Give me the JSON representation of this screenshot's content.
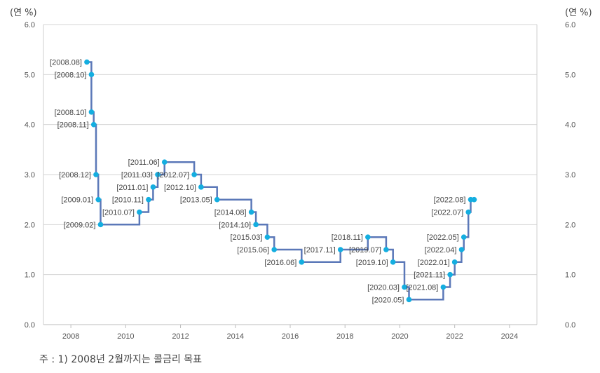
{
  "unit_left": "(연 %)",
  "unit_right": "(연 %)",
  "footnote": "주 : 1) 2008년 2월까지는 콜금리 목표",
  "chart_data": {
    "type": "line",
    "step": true,
    "title": "",
    "xlabel": "",
    "ylabel": "(연 %)",
    "xlim": [
      2007,
      2025
    ],
    "ylim": [
      0.0,
      6.0
    ],
    "xticks": [
      "2008",
      "2010",
      "2012",
      "2014",
      "2016",
      "2018",
      "2020",
      "2022",
      "2024"
    ],
    "yticks": [
      "0.0",
      "1.0",
      "2.0",
      "3.0",
      "4.0",
      "5.0",
      "6.0"
    ],
    "grid": "horizontal",
    "line_color": "#5b78b8",
    "marker_color": "#14aee0",
    "points": [
      {
        "date": "2008.08",
        "rate": 5.25,
        "label": "[2008.08]"
      },
      {
        "date": "2008.10",
        "rate": 5.0,
        "label": "[2008.10]"
      },
      {
        "date": "2008.10",
        "rate": 4.25,
        "label": "[2008.10]"
      },
      {
        "date": "2008.11",
        "rate": 4.0,
        "label": "[2008.11]"
      },
      {
        "date": "2008.12",
        "rate": 3.0,
        "label": "[2008.12]"
      },
      {
        "date": "2009.01",
        "rate": 2.5,
        "label": "[2009.01]"
      },
      {
        "date": "2009.02",
        "rate": 2.0,
        "label": "[2009.02]"
      },
      {
        "date": "2010.07",
        "rate": 2.25,
        "label": "[2010.07]"
      },
      {
        "date": "2010.11",
        "rate": 2.5,
        "label": "[2010.11]"
      },
      {
        "date": "2011.01",
        "rate": 2.75,
        "label": "[2011.01]"
      },
      {
        "date": "2011.03",
        "rate": 3.0,
        "label": "[2011.03]"
      },
      {
        "date": "2011.06",
        "rate": 3.25,
        "label": "[2011.06]"
      },
      {
        "date": "2012.07",
        "rate": 3.0,
        "label": "[2012.07]"
      },
      {
        "date": "2012.10",
        "rate": 2.75,
        "label": "[2012.10]"
      },
      {
        "date": "2013.05",
        "rate": 2.5,
        "label": "[2013.05]"
      },
      {
        "date": "2014.08",
        "rate": 2.25,
        "label": "[2014.08]"
      },
      {
        "date": "2014.10",
        "rate": 2.0,
        "label": "[2014.10]"
      },
      {
        "date": "2015.03",
        "rate": 1.75,
        "label": "[2015.03]"
      },
      {
        "date": "2015.06",
        "rate": 1.5,
        "label": "[2015.06]"
      },
      {
        "date": "2016.06",
        "rate": 1.25,
        "label": "[2016.06]"
      },
      {
        "date": "2017.11",
        "rate": 1.5,
        "label": "[2017.11]"
      },
      {
        "date": "2018.11",
        "rate": 1.75,
        "label": "[2018.11]"
      },
      {
        "date": "2019.07",
        "rate": 1.5,
        "label": "[2019.07]"
      },
      {
        "date": "2019.10",
        "rate": 1.25,
        "label": "[2019.10]"
      },
      {
        "date": "2020.03",
        "rate": 0.75,
        "label": "[2020.03]"
      },
      {
        "date": "2020.05",
        "rate": 0.5,
        "label": "[2020.05]"
      },
      {
        "date": "2021.08",
        "rate": 0.75,
        "label": "[2021.08]"
      },
      {
        "date": "2021.11",
        "rate": 1.0,
        "label": "[2021.11]"
      },
      {
        "date": "2022.01",
        "rate": 1.25,
        "label": "[2022.01]"
      },
      {
        "date": "2022.04",
        "rate": 1.5,
        "label": "[2022.04]"
      },
      {
        "date": "2022.05",
        "rate": 1.75,
        "label": "[2022.05]"
      },
      {
        "date": "2022.07",
        "rate": 2.25,
        "label": "[2022.07]"
      },
      {
        "date": "2022.08",
        "rate": 2.5,
        "label": "[2022.08]"
      }
    ]
  }
}
